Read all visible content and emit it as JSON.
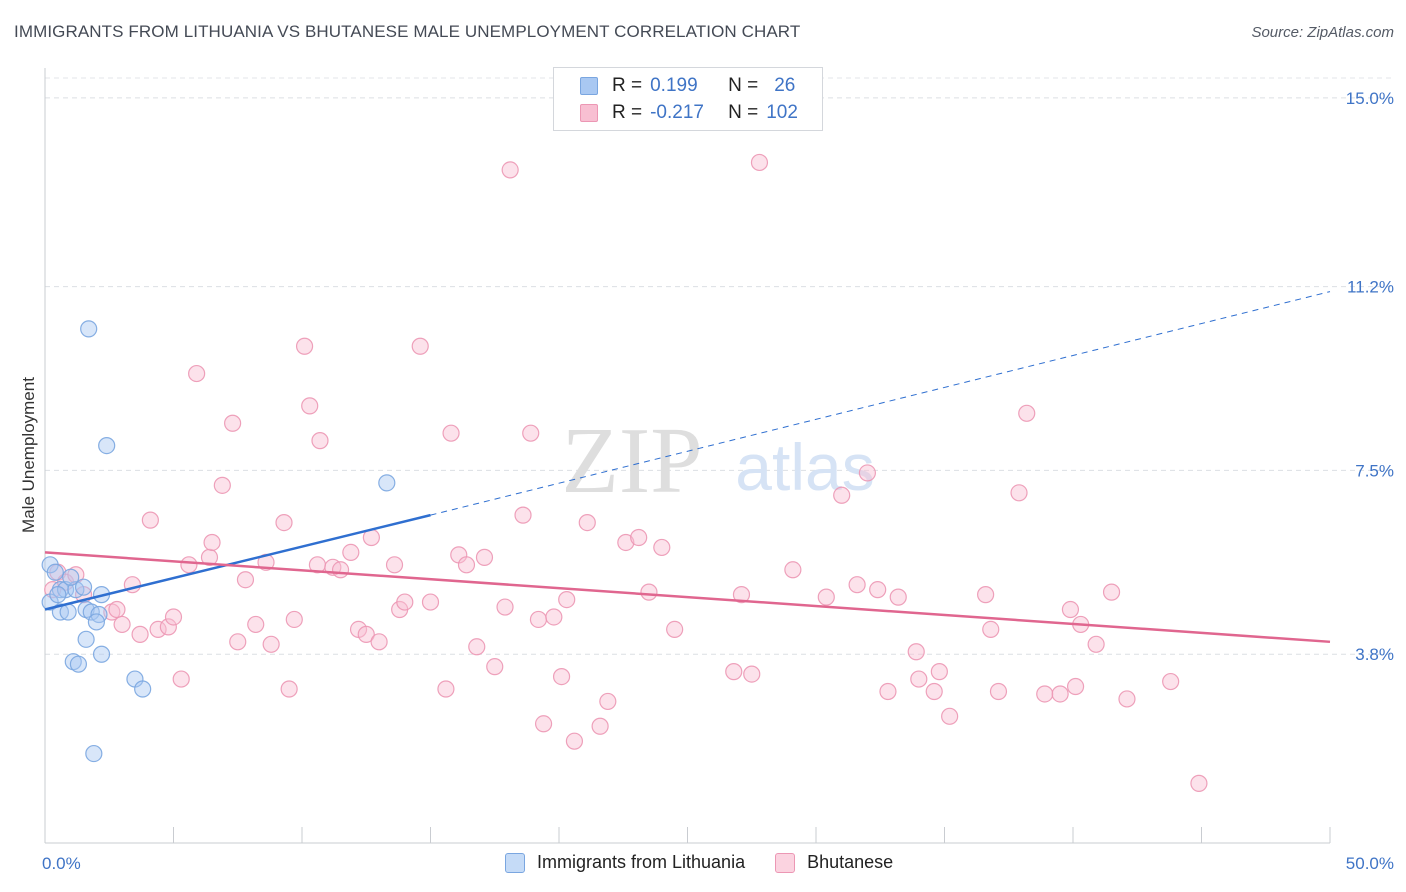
{
  "header": {
    "title": "IMMIGRANTS FROM LITHUANIA VS BHUTANESE MALE UNEMPLOYMENT CORRELATION CHART",
    "source": "Source: ZipAtlas.com"
  },
  "legend": {
    "rows": [
      {
        "r_label": "R =",
        "r_value": "0.199",
        "n_label": "N =",
        "n_value": "26",
        "color": "#a9c8f2",
        "border": "#7aa6e0"
      },
      {
        "r_label": "R =",
        "r_value": "-0.217",
        "n_label": "N =",
        "n_value": "102",
        "color": "#f8bfd2",
        "border": "#ec97b4"
      }
    ]
  },
  "bottom_legend": {
    "items": [
      {
        "label": "Immigrants from Lithuania",
        "color": "#c5dbf7",
        "border": "#7aa6e0"
      },
      {
        "label": "Bhutanese",
        "color": "#fbd3e0",
        "border": "#ec97b4"
      }
    ]
  },
  "watermark": {
    "zip": "ZIP",
    "atlas": "atlas"
  },
  "chart_data": {
    "type": "scatter",
    "title": "IMMIGRANTS FROM LITHUANIA VS BHUTANESE MALE UNEMPLOYMENT CORRELATION CHART",
    "xlabel": "",
    "ylabel": "Male Unemployment",
    "xlim": [
      0,
      50
    ],
    "ylim": [
      0,
      15.4
    ],
    "x_tick_labels": [
      "0.0%",
      "50.0%"
    ],
    "y_ticks": [
      3.8,
      7.5,
      11.2,
      15.0
    ],
    "y_tick_labels": [
      "3.8%",
      "7.5%",
      "11.2%",
      "15.0%"
    ],
    "grid": true,
    "series": [
      {
        "name": "Immigrants from Lithuania",
        "color": "#7aa6e0",
        "fill": "#a9c8f2",
        "trend": {
          "x0": 0,
          "y0": 4.7,
          "x1": 15,
          "y1": 6.6,
          "dash_to_x": 50,
          "dash_to_y": 11.1,
          "color": "#2f6fd0"
        },
        "points": [
          [
            0.2,
            5.6
          ],
          [
            0.4,
            5.45
          ],
          [
            0.2,
            4.85
          ],
          [
            0.6,
            5.1
          ],
          [
            0.8,
            5.1
          ],
          [
            1.2,
            5.1
          ],
          [
            1.0,
            5.35
          ],
          [
            1.6,
            4.7
          ],
          [
            1.8,
            4.65
          ],
          [
            0.6,
            4.65
          ],
          [
            0.9,
            4.65
          ],
          [
            2.1,
            4.6
          ],
          [
            2.2,
            5.0
          ],
          [
            2.0,
            4.45
          ],
          [
            1.6,
            4.1
          ],
          [
            2.2,
            3.8
          ],
          [
            1.1,
            3.65
          ],
          [
            1.3,
            3.6
          ],
          [
            3.5,
            3.3
          ],
          [
            3.8,
            3.1
          ],
          [
            1.7,
            10.35
          ],
          [
            2.4,
            8.0
          ],
          [
            13.3,
            7.25
          ],
          [
            1.9,
            1.8
          ],
          [
            0.5,
            5.0
          ],
          [
            1.5,
            5.15
          ]
        ]
      },
      {
        "name": "Bhutanese",
        "color": "#ec97b4",
        "fill": "#f8bfd2",
        "trend": {
          "x0": 0,
          "y0": 5.85,
          "x1": 50,
          "y1": 4.05,
          "color": "#e0668f"
        },
        "points": [
          [
            0.3,
            5.1
          ],
          [
            0.5,
            5.45
          ],
          [
            0.8,
            5.25
          ],
          [
            1.2,
            5.4
          ],
          [
            1.5,
            5.0
          ],
          [
            2.6,
            4.65
          ],
          [
            2.8,
            4.7
          ],
          [
            3.0,
            4.4
          ],
          [
            3.4,
            5.2
          ],
          [
            3.7,
            4.2
          ],
          [
            4.1,
            6.5
          ],
          [
            4.4,
            4.3
          ],
          [
            4.8,
            4.35
          ],
          [
            5.0,
            4.55
          ],
          [
            5.3,
            3.3
          ],
          [
            5.6,
            5.6
          ],
          [
            5.9,
            9.45
          ],
          [
            6.4,
            5.75
          ],
          [
            6.5,
            6.05
          ],
          [
            6.9,
            7.2
          ],
          [
            7.3,
            8.45
          ],
          [
            7.5,
            4.05
          ],
          [
            7.8,
            5.3
          ],
          [
            8.2,
            4.4
          ],
          [
            8.6,
            5.65
          ],
          [
            8.8,
            4.0
          ],
          [
            9.3,
            6.45
          ],
          [
            9.5,
            3.1
          ],
          [
            9.7,
            4.5
          ],
          [
            10.1,
            10.0
          ],
          [
            10.3,
            8.8
          ],
          [
            10.6,
            5.6
          ],
          [
            10.7,
            8.1
          ],
          [
            11.2,
            5.55
          ],
          [
            11.5,
            5.5
          ],
          [
            11.9,
            5.85
          ],
          [
            12.2,
            4.3
          ],
          [
            12.5,
            4.2
          ],
          [
            12.7,
            6.15
          ],
          [
            13.0,
            4.05
          ],
          [
            13.6,
            5.6
          ],
          [
            13.8,
            4.7
          ],
          [
            14.0,
            4.85
          ],
          [
            14.6,
            10.0
          ],
          [
            15.0,
            4.85
          ],
          [
            15.6,
            3.1
          ],
          [
            15.8,
            8.25
          ],
          [
            16.1,
            5.8
          ],
          [
            16.4,
            5.6
          ],
          [
            16.8,
            3.95
          ],
          [
            17.1,
            5.75
          ],
          [
            17.5,
            3.55
          ],
          [
            17.9,
            4.75
          ],
          [
            18.1,
            13.55
          ],
          [
            18.6,
            6.6
          ],
          [
            18.9,
            8.25
          ],
          [
            19.2,
            4.5
          ],
          [
            19.4,
            2.4
          ],
          [
            19.8,
            4.55
          ],
          [
            20.1,
            3.35
          ],
          [
            20.3,
            4.9
          ],
          [
            20.6,
            2.05
          ],
          [
            21.1,
            6.45
          ],
          [
            21.6,
            2.35
          ],
          [
            21.9,
            2.85
          ],
          [
            22.6,
            6.05
          ],
          [
            23.1,
            6.15
          ],
          [
            23.5,
            5.05
          ],
          [
            24.0,
            5.95
          ],
          [
            24.5,
            4.3
          ],
          [
            26.8,
            3.45
          ],
          [
            27.1,
            5.0
          ],
          [
            27.5,
            3.4
          ],
          [
            27.8,
            13.7
          ],
          [
            29.1,
            5.5
          ],
          [
            30.4,
            4.95
          ],
          [
            31.0,
            7.0
          ],
          [
            31.6,
            5.2
          ],
          [
            32.0,
            7.45
          ],
          [
            32.4,
            5.1
          ],
          [
            32.8,
            3.05
          ],
          [
            33.2,
            4.95
          ],
          [
            33.9,
            3.85
          ],
          [
            34.0,
            3.3
          ],
          [
            34.6,
            3.05
          ],
          [
            34.8,
            3.45
          ],
          [
            35.2,
            2.55
          ],
          [
            36.6,
            5.0
          ],
          [
            36.8,
            4.3
          ],
          [
            37.1,
            3.05
          ],
          [
            37.9,
            7.05
          ],
          [
            38.2,
            8.65
          ],
          [
            38.9,
            3.0
          ],
          [
            39.5,
            3.0
          ],
          [
            39.9,
            4.7
          ],
          [
            40.1,
            3.15
          ],
          [
            40.3,
            4.4
          ],
          [
            40.9,
            4.0
          ],
          [
            42.1,
            2.9
          ],
          [
            43.8,
            3.25
          ],
          [
            44.9,
            1.2
          ],
          [
            41.5,
            5.05
          ]
        ]
      }
    ]
  }
}
